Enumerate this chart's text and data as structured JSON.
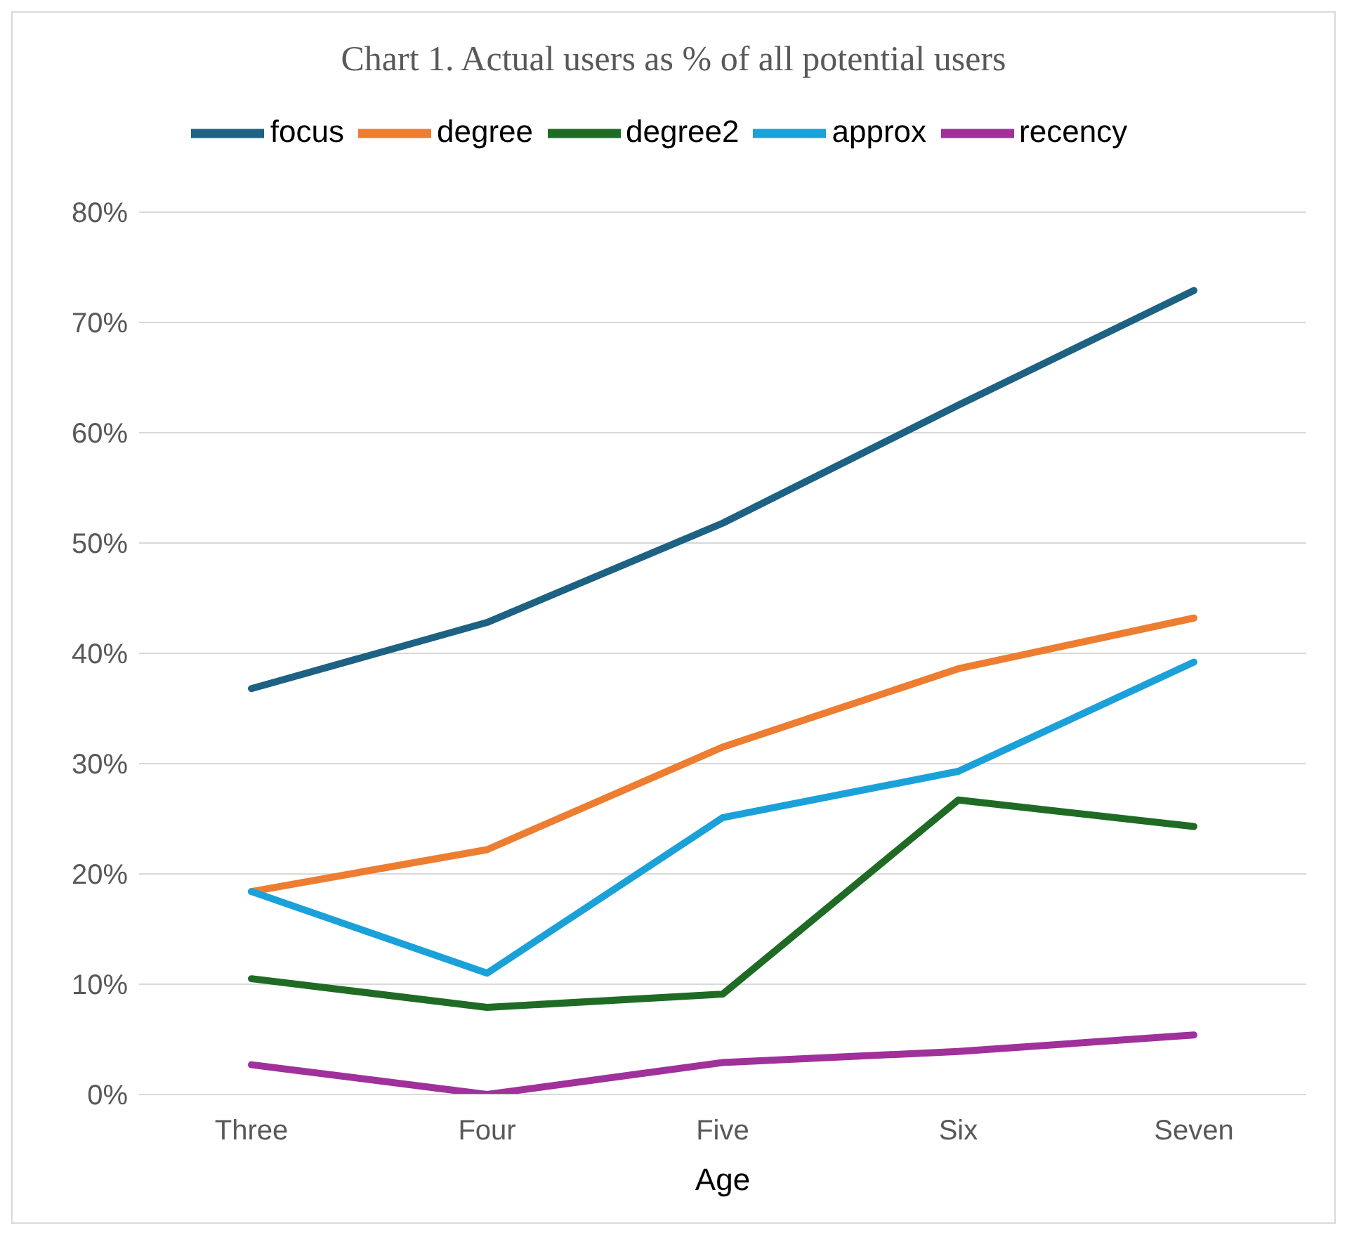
{
  "chart_data": {
    "type": "line",
    "title": "Chart 1. Actual users as % of all potential users",
    "xlabel": "Age",
    "categories": [
      "Three",
      "Four",
      "Five",
      "Six",
      "Seven"
    ],
    "series": [
      {
        "name": "focus",
        "color": "#1d6183",
        "values": [
          36.8,
          42.8,
          51.8,
          62.5,
          72.9
        ]
      },
      {
        "name": "degree",
        "color": "#ed7d31",
        "values": [
          18.4,
          22.2,
          31.5,
          38.6,
          43.2
        ]
      },
      {
        "name": "degree2",
        "color": "#1f6b25",
        "values": [
          10.5,
          7.9,
          9.1,
          26.7,
          24.3
        ]
      },
      {
        "name": "approx",
        "color": "#1ba1d9",
        "values": [
          18.4,
          11.0,
          25.1,
          29.3,
          39.2
        ]
      },
      {
        "name": "recency",
        "color": "#a0309a",
        "values": [
          2.7,
          0,
          2.9,
          3.9,
          5.4
        ]
      }
    ],
    "ylim": [
      0,
      80
    ],
    "yticks": [
      {
        "value": 0,
        "label": "0%"
      },
      {
        "value": 10,
        "label": "10%"
      },
      {
        "value": 20,
        "label": "20%"
      },
      {
        "value": 30,
        "label": "30%"
      },
      {
        "value": 40,
        "label": "40%"
      },
      {
        "value": 50,
        "label": "50%"
      },
      {
        "value": 60,
        "label": "60%"
      },
      {
        "value": 70,
        "label": "70%"
      },
      {
        "value": 80,
        "label": "80%"
      }
    ],
    "grid": "y",
    "legend": "top",
    "marker": "none",
    "line_style": "solid"
  }
}
